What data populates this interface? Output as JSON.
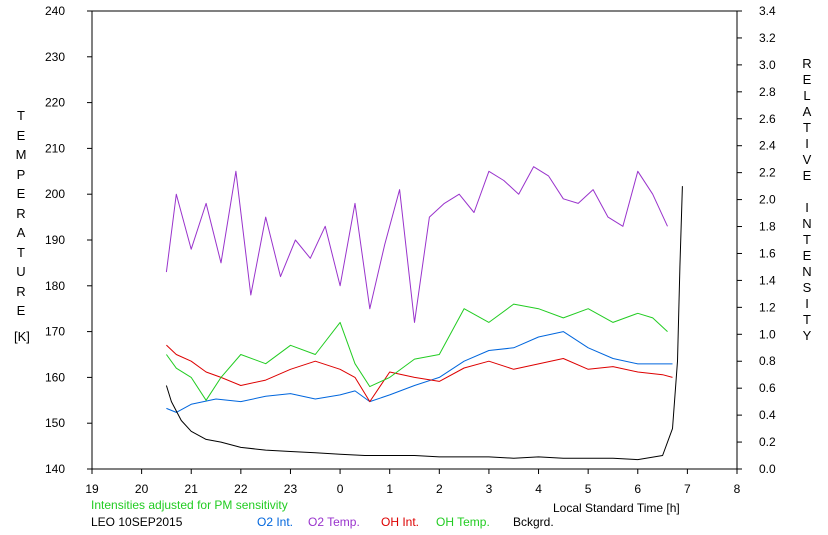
{
  "chart_data": {
    "type": "line",
    "site_date": "LEO 10SEP2015",
    "note": "Intensities adjusted for PM sensitivity",
    "xlabel": "Local Standard Time [h]",
    "ylabel_left_letters": [
      "T",
      "E",
      "M",
      "P",
      "E",
      "R",
      "A",
      "T",
      "U",
      "R",
      "E"
    ],
    "ylabel_left_unit": "[K]",
    "ylabel_right_letters": [
      "R",
      "E",
      "L",
      "A",
      "T",
      "I",
      "V",
      "E",
      " ",
      "I",
      "N",
      "T",
      "E",
      "N",
      "S",
      "I",
      "T",
      "Y"
    ],
    "xlim": [
      19,
      32
    ],
    "x_tick_values": [
      19,
      20,
      21,
      22,
      23,
      24,
      25,
      26,
      27,
      28,
      29,
      30,
      31,
      32
    ],
    "x_tick_labels": [
      "19",
      "20",
      "21",
      "22",
      "23",
      "0",
      "1",
      "2",
      "3",
      "4",
      "5",
      "6",
      "7",
      "8"
    ],
    "ylim_left": [
      140,
      240
    ],
    "y_left_ticks": [
      "140",
      "150",
      "160",
      "170",
      "180",
      "190",
      "200",
      "210",
      "220",
      "230",
      "240"
    ],
    "ylim_right": [
      0.0,
      3.4
    ],
    "y_right_ticks": [
      "0.0",
      "0.2",
      "0.4",
      "0.6",
      "0.8",
      "1.0",
      "1.2",
      "1.4",
      "1.6",
      "1.8",
      "2.0",
      "2.2",
      "2.4",
      "2.6",
      "2.8",
      "3.0",
      "3.2",
      "3.4"
    ],
    "grid": false,
    "series": [
      {
        "name": "O2 Int.",
        "axis": "right",
        "color": "#0066dd",
        "x": [
          20.5,
          20.7,
          21.0,
          21.5,
          22.0,
          22.5,
          23.0,
          23.5,
          24.0,
          24.3,
          24.6,
          25.0,
          25.5,
          26.0,
          26.5,
          27.0,
          27.5,
          28.0,
          28.5,
          29.0,
          29.5,
          30.0,
          30.5,
          30.7
        ],
        "y": [
          0.45,
          0.42,
          0.48,
          0.52,
          0.5,
          0.54,
          0.56,
          0.52,
          0.55,
          0.58,
          0.5,
          0.55,
          0.62,
          0.68,
          0.8,
          0.88,
          0.9,
          0.98,
          1.02,
          0.9,
          0.82,
          0.78,
          0.78,
          0.78
        ]
      },
      {
        "name": "O2 Temp.",
        "axis": "left",
        "color": "#9933cc",
        "x": [
          20.5,
          20.7,
          21.0,
          21.3,
          21.6,
          21.9,
          22.2,
          22.5,
          22.8,
          23.1,
          23.4,
          23.7,
          24.0,
          24.3,
          24.6,
          24.9,
          25.2,
          25.5,
          25.8,
          26.1,
          26.4,
          26.7,
          27.0,
          27.3,
          27.6,
          27.9,
          28.2,
          28.5,
          28.8,
          29.1,
          29.4,
          29.7,
          30.0,
          30.3,
          30.6
        ],
        "y": [
          183,
          200,
          188,
          198,
          185,
          205,
          178,
          195,
          182,
          190,
          186,
          193,
          180,
          198,
          175,
          189,
          201,
          172,
          195,
          198,
          200,
          196,
          205,
          203,
          200,
          206,
          204,
          199,
          198,
          201,
          195,
          193,
          205,
          200,
          193
        ]
      },
      {
        "name": "OH Int.",
        "axis": "right",
        "color": "#dd0000",
        "x": [
          20.5,
          20.7,
          21.0,
          21.3,
          21.6,
          22.0,
          22.5,
          23.0,
          23.5,
          24.0,
          24.3,
          24.6,
          25.0,
          25.5,
          26.0,
          26.5,
          27.0,
          27.5,
          28.0,
          28.5,
          29.0,
          29.5,
          30.0,
          30.5,
          30.7
        ],
        "y": [
          0.92,
          0.85,
          0.8,
          0.72,
          0.68,
          0.62,
          0.66,
          0.74,
          0.8,
          0.74,
          0.68,
          0.5,
          0.72,
          0.68,
          0.65,
          0.75,
          0.8,
          0.74,
          0.78,
          0.82,
          0.74,
          0.76,
          0.72,
          0.7,
          0.68
        ]
      },
      {
        "name": "OH Temp.",
        "axis": "left",
        "color": "#22cc22",
        "x": [
          20.5,
          20.7,
          21.0,
          21.3,
          21.6,
          22.0,
          22.5,
          23.0,
          23.5,
          24.0,
          24.3,
          24.6,
          25.0,
          25.5,
          26.0,
          26.5,
          27.0,
          27.5,
          28.0,
          28.5,
          29.0,
          29.5,
          30.0,
          30.3,
          30.6
        ],
        "y": [
          165,
          162,
          160,
          155,
          160,
          165,
          163,
          167,
          165,
          172,
          163,
          158,
          160,
          164,
          165,
          175,
          172,
          176,
          175,
          173,
          175,
          172,
          174,
          173,
          170
        ]
      },
      {
        "name": "Bckgrd.",
        "axis": "right",
        "color": "#000000",
        "x": [
          20.5,
          20.6,
          20.8,
          21.0,
          21.3,
          21.6,
          22.0,
          22.5,
          23.0,
          23.5,
          24.0,
          24.5,
          25.0,
          25.5,
          26.0,
          26.5,
          27.0,
          27.5,
          28.0,
          28.5,
          29.0,
          29.5,
          30.0,
          30.5,
          30.7,
          30.8,
          30.85,
          30.9
        ],
        "y": [
          0.62,
          0.5,
          0.36,
          0.28,
          0.22,
          0.2,
          0.16,
          0.14,
          0.13,
          0.12,
          0.11,
          0.1,
          0.1,
          0.1,
          0.09,
          0.09,
          0.09,
          0.08,
          0.09,
          0.08,
          0.08,
          0.08,
          0.07,
          0.1,
          0.3,
          0.8,
          1.5,
          2.1
        ]
      }
    ]
  }
}
